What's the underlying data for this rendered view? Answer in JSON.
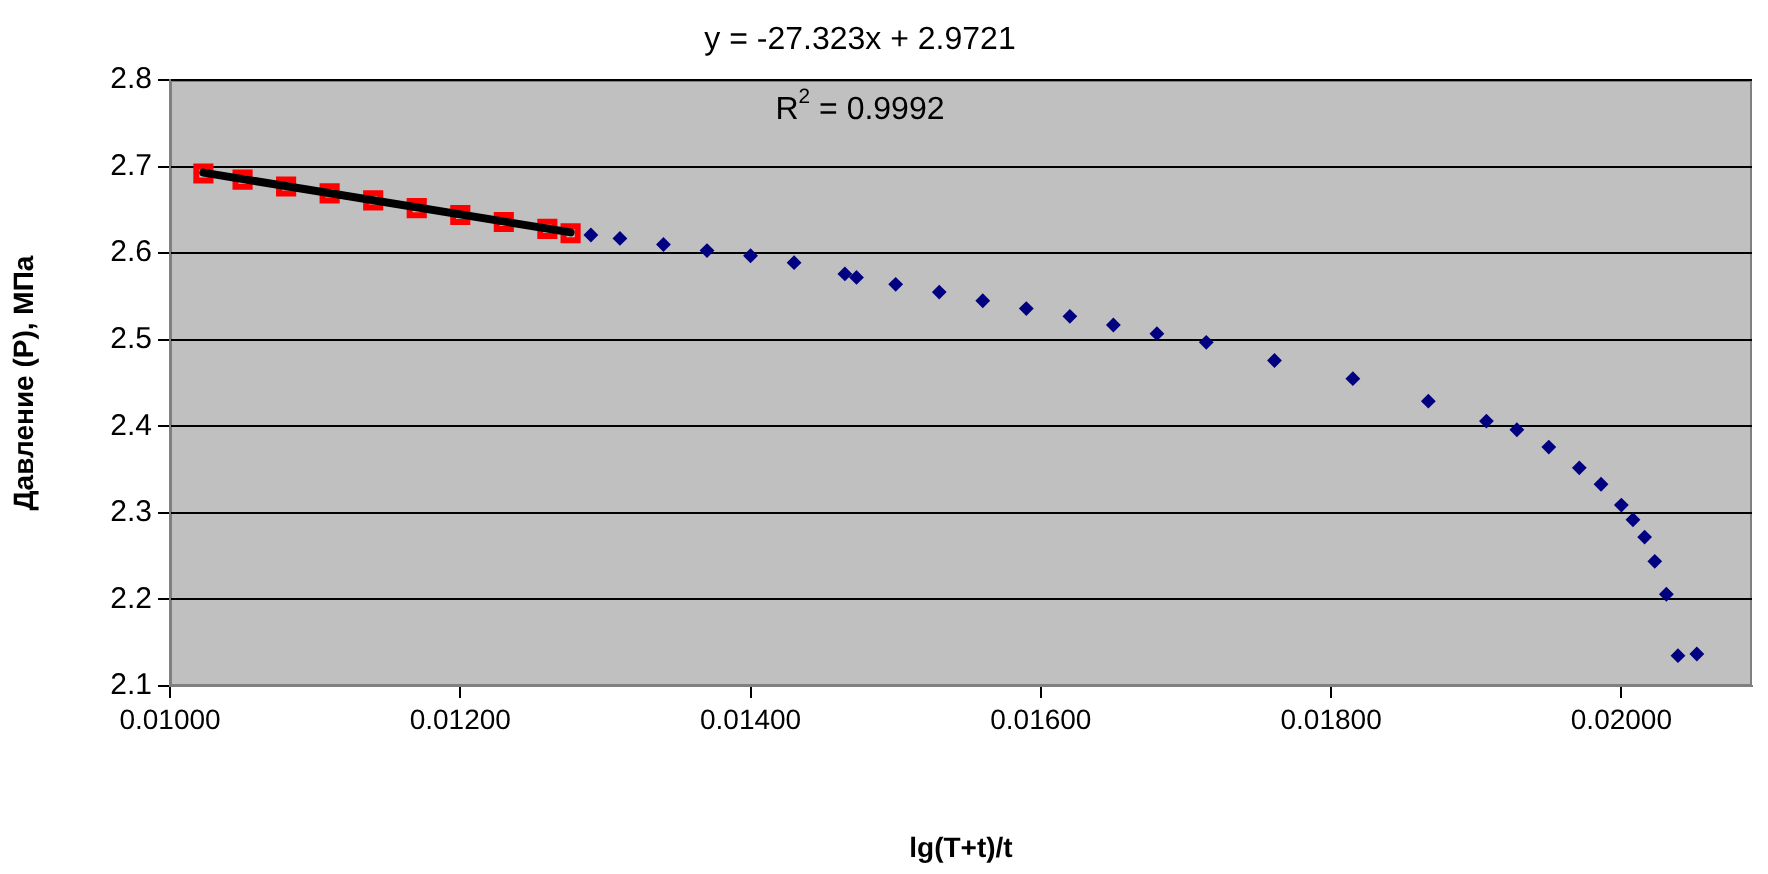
{
  "chart_data": {
    "type": "scatter",
    "xlabel": "lg(T+t)/t",
    "ylabel": "Давление (Р), МПа",
    "annotations": [
      "y = -27.323x + 2.9721",
      "R$^{2}$ = 0.9992"
    ],
    "xlim": [
      0.01,
      0.0209
    ],
    "xticks": [
      {
        "value": 0.01,
        "label": "0.01000"
      },
      {
        "value": 0.012,
        "label": "0.01200"
      },
      {
        "value": 0.014,
        "label": "0.01400"
      },
      {
        "value": 0.016,
        "label": "0.01600"
      },
      {
        "value": 0.018,
        "label": "0.01800"
      },
      {
        "value": 0.02,
        "label": "0.02000"
      }
    ],
    "ylim": [
      2.1,
      2.8
    ],
    "yticks": [
      2.1,
      2.2,
      2.3,
      2.4,
      2.5,
      2.6,
      2.7,
      2.8
    ],
    "grid": "y",
    "legend": false,
    "series": [
      {
        "marker": "diamond",
        "color": "#000080",
        "x": [
          0.0129,
          0.0131,
          0.0134,
          0.0137,
          0.014,
          0.0143,
          0.01465,
          0.01473,
          0.015,
          0.0153,
          0.0156,
          0.0159,
          0.0162,
          0.0165,
          0.0168,
          0.01714,
          0.01761,
          0.01815,
          0.01867,
          0.01907,
          0.01928,
          0.0195,
          0.01971,
          0.01986,
          0.02,
          0.02008,
          0.02016,
          0.02023,
          0.02031,
          0.02039,
          0.02052
        ],
        "values": [
          2.621,
          2.617,
          2.61,
          2.603,
          2.597,
          2.589,
          2.576,
          2.572,
          2.564,
          2.555,
          2.545,
          2.536,
          2.527,
          2.517,
          2.507,
          2.497,
          2.476,
          2.455,
          2.429,
          2.406,
          2.396,
          2.376,
          2.352,
          2.333,
          2.309,
          2.292,
          2.272,
          2.244,
          2.206,
          2.135,
          2.137
        ]
      },
      {
        "marker": "square",
        "color": "#ff0000",
        "x": [
          0.01023,
          0.0105,
          0.0108,
          0.0111,
          0.0114,
          0.0117,
          0.012,
          0.0123,
          0.0126,
          0.01276
        ],
        "values": [
          2.692,
          2.685,
          2.677,
          2.669,
          2.661,
          2.652,
          2.644,
          2.636,
          2.628,
          2.623
        ]
      },
      {
        "type": "line",
        "marker": "none",
        "color": "#000000",
        "x": [
          0.01023,
          0.01276
        ],
        "values": [
          2.693,
          2.624
        ]
      }
    ]
  }
}
